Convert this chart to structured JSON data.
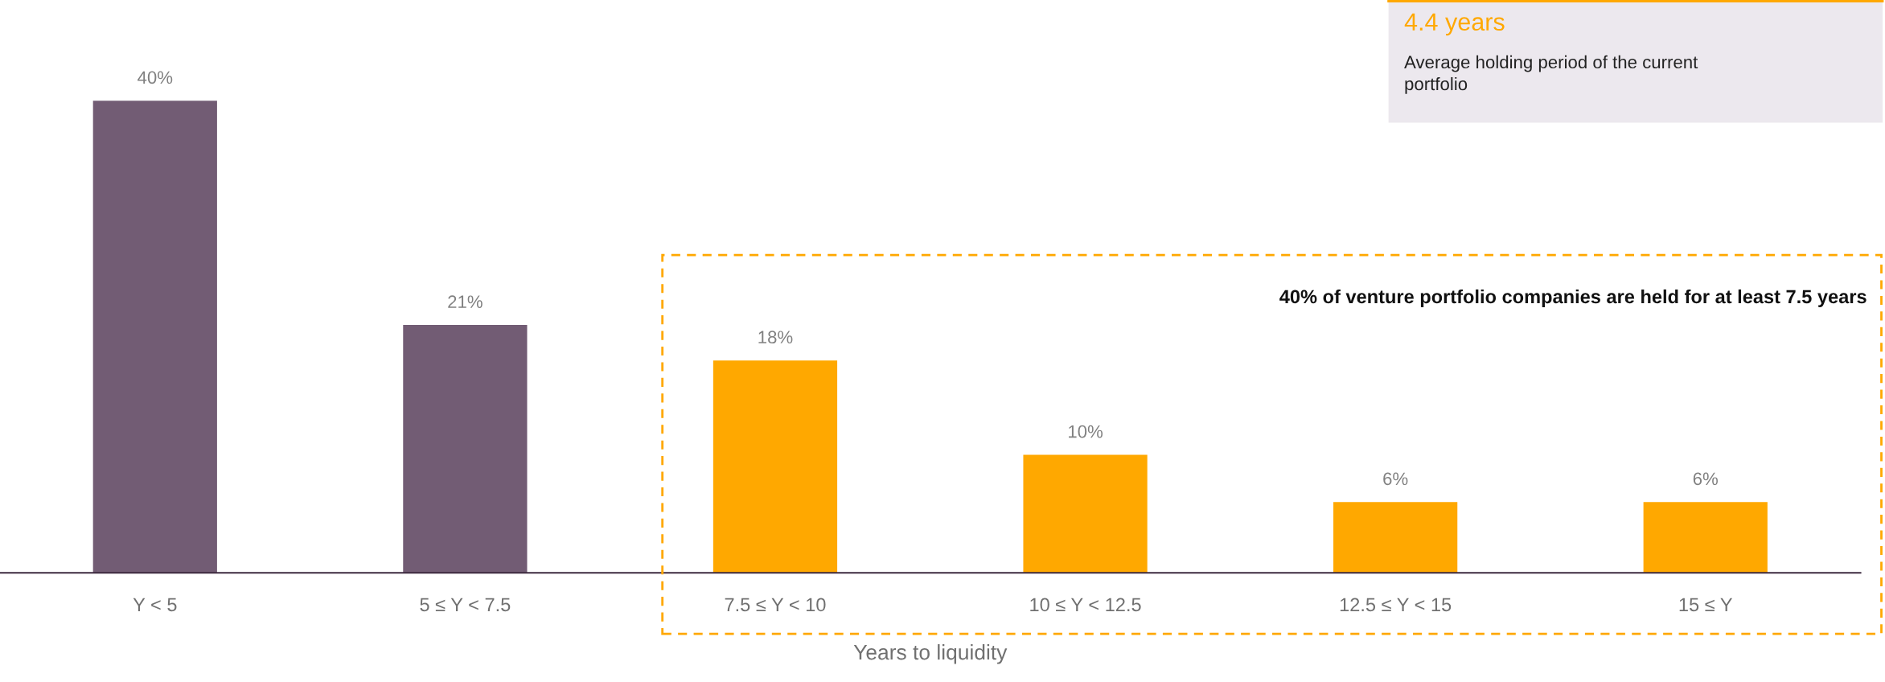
{
  "chart_data": {
    "type": "bar",
    "xlabel": "Years to liquidity",
    "categories": [
      "Y < 5",
      "5 ≤ Y < 7.5",
      "7.5 ≤ Y < 10",
      "10 ≤ Y < 12.5",
      "12.5 ≤ Y < 15",
      "15 ≤ Y"
    ],
    "values": [
      40,
      21,
      18,
      10,
      6,
      6
    ],
    "value_labels": [
      "40%",
      "21%",
      "18%",
      "10%",
      "6%",
      "6%"
    ],
    "colors": [
      "#725c74",
      "#725c74",
      "#ffa800",
      "#ffa800",
      "#ffa800",
      "#ffa800"
    ],
    "annotations": [
      "4.4 years",
      "Average holding period of the current\nportfolio",
      "40% of venture portfolio companies are held for at least 7.5 years"
    ],
    "grid": false
  }
}
